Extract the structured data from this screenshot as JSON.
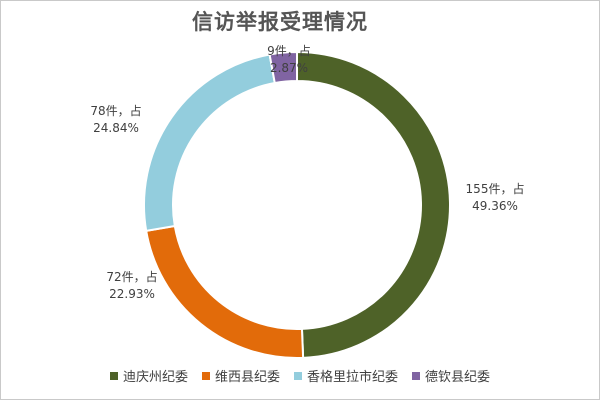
{
  "chart_data": {
    "type": "pie",
    "variant": "donut",
    "title": "信访举报受理情况",
    "categories": [
      "迪庆州纪委",
      "维西县纪委",
      "香格里拉市纪委",
      "德钦县纪委"
    ],
    "values": [
      155,
      72,
      78,
      9
    ],
    "percents": [
      "49.36%",
      "22.93%",
      "24.84%",
      "2.87%"
    ],
    "labels": [
      {
        "line1": "155件，占",
        "line2": "49.36%"
      },
      {
        "line1": "72件，占",
        "line2": "22.93%"
      },
      {
        "line1": "78件，占",
        "line2": "24.84%"
      },
      {
        "line1": "9件，占",
        "line2": "2.87%"
      }
    ],
    "colors": [
      "#4e6228",
      "#e26b0a",
      "#93cddd",
      "#8064a2"
    ],
    "legend_position": "bottom",
    "start_angle": "top, clockwise"
  }
}
